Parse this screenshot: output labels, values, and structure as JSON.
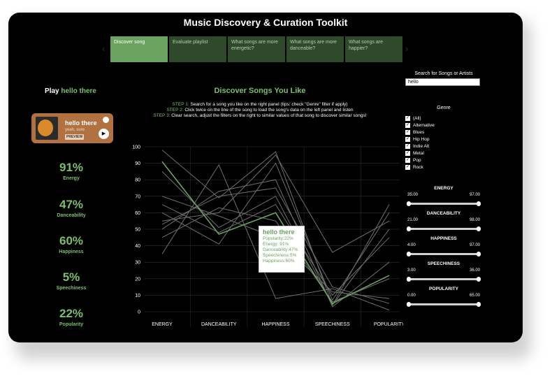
{
  "app_title": "Music Discovery & Curation Toolkit",
  "tabs": [
    {
      "label": "Discover song",
      "active": true
    },
    {
      "label": "Evaluate playlist",
      "active": false
    },
    {
      "label": "What songs are more energetic?",
      "active": false
    },
    {
      "label": "What songs are more danceable?",
      "active": false
    },
    {
      "label": "What songs are happier?",
      "active": false
    }
  ],
  "search": {
    "label": "Search for Songs or Artists",
    "value": "hello"
  },
  "left_panel": {
    "play_prefix": "Play",
    "song_name": "hello there",
    "card": {
      "title": "hello there",
      "subtitle": "yeah, sure",
      "preview_label": "PREVIEW"
    },
    "stats": [
      {
        "value": "91%",
        "label": "Energy"
      },
      {
        "value": "47%",
        "label": "Danceability"
      },
      {
        "value": "60%",
        "label": "Happiness"
      },
      {
        "value": "5%",
        "label": "Speechiness"
      },
      {
        "value": "22%",
        "label": "Popularity"
      }
    ]
  },
  "main": {
    "heading": "Discover Songs You Like",
    "steps": [
      {
        "label": "STEP 1:",
        "text": " Search for a song you like on the right panel (tips: check \"Genre\" filter if apply)"
      },
      {
        "label": "STEP 2:",
        "text": " Click twice on the line of the song to load the song's data on the left panel and listen"
      },
      {
        "label": "STEP 3:",
        "text": " Clear search, adjust the filters on the right to similar values of that song to discover similar songs!"
      }
    ]
  },
  "genre": {
    "title": "Genre",
    "items": [
      "(All)",
      "Alternative",
      "Blues",
      "Hip Hop",
      "Indie Alt",
      "Metal",
      "Pop",
      "Rock"
    ]
  },
  "sliders": [
    {
      "name": "ENERGY",
      "min": "35.00",
      "max": "97.00"
    },
    {
      "name": "DANCEABILITY",
      "min": "21.00",
      "max": "98.00"
    },
    {
      "name": "HAPPINESS",
      "min": "4.00",
      "max": "97.00"
    },
    {
      "name": "SPEECHINESS",
      "min": "3.00",
      "max": "36.00"
    },
    {
      "name": "POPULARITY",
      "min": "0.00",
      "max": "65.00"
    }
  ],
  "tooltip": {
    "title": "hello there",
    "lines": [
      "Popularity:22%",
      "Energy: 91%",
      "Danceability:47%",
      "Speechiness:5%",
      "Happiness:60%"
    ]
  },
  "colors": {
    "accent": "#7bbf6e",
    "highlight_line": "#6aa360",
    "other_lines": "#6f6f6f",
    "card": "#b27140"
  },
  "chart_data": {
    "type": "line",
    "categories": [
      "ENERGY",
      "DANCEABILITY",
      "HAPPINESS",
      "SPEECHINESS",
      "POPULARITY"
    ],
    "ylim": [
      0,
      100
    ],
    "yticks": [
      0,
      10,
      20,
      30,
      40,
      50,
      60,
      70,
      80,
      90,
      100
    ],
    "grid": true,
    "highlight": {
      "name": "hello there",
      "values": [
        91,
        47,
        60,
        5,
        22
      ]
    },
    "series": [
      {
        "values": [
          98,
          69,
          97,
          4,
          65
        ]
      },
      {
        "values": [
          35,
          89,
          8,
          14,
          1
        ]
      },
      {
        "values": [
          55,
          60,
          95,
          36,
          55
        ]
      },
      {
        "values": [
          65,
          48,
          65,
          10,
          45
        ]
      },
      {
        "values": [
          50,
          73,
          80,
          3,
          30
        ]
      },
      {
        "values": [
          60,
          41,
          90,
          7,
          60
        ]
      },
      {
        "values": [
          70,
          58,
          45,
          12,
          8
        ]
      },
      {
        "values": [
          85,
          51,
          70,
          4,
          50
        ]
      },
      {
        "values": [
          45,
          63,
          55,
          6,
          20
        ]
      },
      {
        "values": [
          53,
          70,
          75,
          15,
          5
        ]
      }
    ]
  }
}
